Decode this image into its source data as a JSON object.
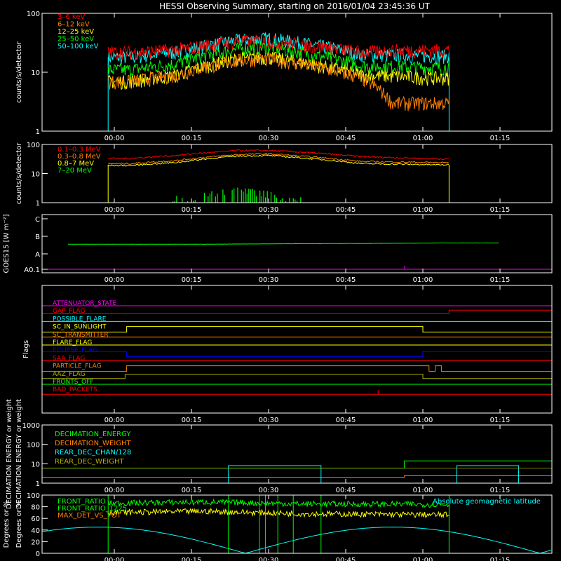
{
  "chart_data": {
    "type": "line",
    "title": "HESSI Observing Summary, starting on 2016/01/04 23:45:36 UT",
    "time_ticks": [
      "00:00",
      "00:15",
      "00:30",
      "00:45",
      "01:00",
      "01:15"
    ],
    "colors": {
      "background": "#000000",
      "axis": "#ffffff",
      "green": "#00ff00",
      "cyan": "#00ffff",
      "yellow": "#ffff00",
      "orange": "#ff8000",
      "red": "#ff0000",
      "magenta": "#ff00ff",
      "blue": "#0000ff",
      "olive": "#b0b000"
    },
    "panels": [
      {
        "id": "hxr",
        "ylabel": "counts/s/detector",
        "ylim": [
          1,
          100
        ],
        "log": true,
        "yticks": [
          "1",
          "10",
          "100"
        ],
        "legend": [
          {
            "label": "3–6 keV",
            "color": "#ff0000"
          },
          {
            "label": "6–12 keV",
            "color": "#ff8000"
          },
          {
            "label": "12–25 keV",
            "color": "#ffff00"
          },
          {
            "label": "25–50 keV",
            "color": "#00ff00"
          },
          {
            "label": "50–100 keV",
            "color": "#00ffff"
          }
        ],
        "series": [
          {
            "name": "3–6 keV",
            "color": "#ff0000",
            "x": [
              -0.02,
              0.05,
              0.2,
              0.4,
              0.5,
              0.6,
              0.8,
              0.95,
              1.05
            ],
            "y": [
              22,
              22,
              24,
              34,
              34,
              30,
              22,
              24,
              24
            ]
          },
          {
            "name": "6–12 keV",
            "color": "#ff8000",
            "x": [
              -0.02,
              0.05,
              0.2,
              0.4,
              0.5,
              0.6,
              0.8,
              0.9,
              1.05
            ],
            "y": [
              7,
              7,
              9,
              16,
              17,
              14,
              8,
              3,
              3
            ]
          },
          {
            "name": "12–25 keV",
            "color": "#ffff00",
            "x": [
              -0.02,
              0.05,
              0.2,
              0.4,
              0.5,
              0.6,
              0.8,
              1.05
            ],
            "y": [
              7,
              7,
              9,
              17,
              18,
              15,
              9,
              8
            ]
          },
          {
            "name": "25–50 keV",
            "color": "#00ff00",
            "x": [
              -0.02,
              0.05,
              0.2,
              0.4,
              0.5,
              0.6,
              0.8,
              1.05
            ],
            "y": [
              11,
              11,
              14,
              25,
              27,
              22,
              13,
              12
            ]
          },
          {
            "name": "50–100 keV",
            "color": "#00ffff",
            "x": [
              -0.02,
              0.05,
              0.2,
              0.4,
              0.5,
              0.6,
              0.8,
              1.05
            ],
            "y": [
              18,
              18,
              22,
              35,
              38,
              32,
              20,
              19
            ]
          }
        ]
      },
      {
        "id": "gamma",
        "ylabel": "counts/s/detector",
        "ylim": [
          1,
          100
        ],
        "log": true,
        "yticks": [
          "1",
          "10",
          "100"
        ],
        "legend": [
          {
            "label": "0.1–0.3 MeV",
            "color": "#ff0000"
          },
          {
            "label": "0.3–0.8 MeV",
            "color": "#ff8000"
          },
          {
            "label": "0.8–7 MeV",
            "color": "#ffff00"
          },
          {
            "label": "7–20 MeV",
            "color": "#00ff00"
          }
        ],
        "series": [
          {
            "name": "0.1–0.3 MeV",
            "color": "#ff0000",
            "x": [
              -0.02,
              0.05,
              0.2,
              0.4,
              0.5,
              0.6,
              0.8,
              1.05
            ],
            "y": [
              33,
              33,
              42,
              62,
              62,
              55,
              38,
              32
            ]
          },
          {
            "name": "0.3–0.8 MeV",
            "color": "#ff8000",
            "x": [
              -0.02,
              0.05,
              0.2,
              0.4,
              0.5,
              0.6,
              0.8,
              1.05
            ],
            "y": [
              22,
              22,
              28,
              45,
              48,
              40,
              26,
              24
            ]
          },
          {
            "name": "0.8–7 MeV",
            "color": "#ffff00",
            "x": [
              -0.02,
              0.05,
              0.2,
              0.4,
              0.5,
              0.6,
              0.8,
              1.05
            ],
            "y": [
              19,
              19,
              24,
              40,
              42,
              35,
              22,
              20
            ]
          },
          {
            "name": "7–20 MeV",
            "color": "#00ff00",
            "x": [
              0.2,
              0.25,
              0.3,
              0.35,
              0.4,
              0.45,
              0.5,
              0.55,
              0.6
            ],
            "y": [
              1.4,
              1.6,
              2.0,
              2.4,
              2.6,
              2.4,
              2.0,
              1.6,
              1.3
            ]
          }
        ]
      },
      {
        "id": "goes",
        "ylabel": "GOES15 [W m⁻²]",
        "yticks": [
          "A0.1",
          "A",
          "B",
          "C"
        ],
        "series": [
          {
            "name": "GOES15",
            "color": "#00ff00",
            "x": [
              -0.15,
              0.3,
              0.6,
              0.9,
              1.05,
              1.25
            ],
            "y": [
              1.55,
              1.55,
              1.58,
              1.6,
              1.62,
              1.62
            ]
          }
        ]
      },
      {
        "id": "flags",
        "ylabel": "Flags",
        "flags": [
          {
            "label": "ATTENUATOR_STATE",
            "color": "#ff00ff"
          },
          {
            "label": "GAP_FLAG",
            "color": "#ff0000"
          },
          {
            "label": "POSSIBLE_FLARE",
            "color": "#00ffff"
          },
          {
            "label": "SC_IN_SUNLIGHT",
            "color": "#ffff00"
          },
          {
            "label": "SC_TRANSMITTER",
            "color": "#ff8000"
          },
          {
            "label": "FLARE_FLAG",
            "color": "#ffff00"
          },
          {
            "label": "ECLIPSE_FLAG",
            "color": "#0000ff"
          },
          {
            "label": "SAA_FLAG",
            "color": "#ff0000"
          },
          {
            "label": "PARTICLE_FLAG",
            "color": "#ff8000"
          },
          {
            "label": "AAZ_FLAG",
            "color": "#b0b000"
          },
          {
            "label": "FRONTS_OFF",
            "color": "#00ff00"
          },
          {
            "label": "BAD_PACKETS",
            "color": "#ff0000"
          }
        ]
      },
      {
        "id": "decimation",
        "ylabel": "DECIMATION ENERGY or weight",
        "ylim": [
          1,
          1000
        ],
        "log": true,
        "yticks": [
          "1",
          "10",
          "100",
          "1000"
        ],
        "legend": [
          {
            "label": "DECIMATION_ENERGY",
            "color": "#00ff00"
          },
          {
            "label": "DECIMATION_WEIGHT",
            "color": "#ff8000"
          },
          {
            "label": "REAR_DEC_CHAN/128",
            "color": "#00ffff"
          },
          {
            "label": "REAR_DEC_WEIGHT",
            "color": "#b0b000"
          }
        ]
      },
      {
        "id": "ratios",
        "ylabel": "Degrees or %",
        "ylim": [
          0,
          100
        ],
        "yticks": [
          "0",
          "20",
          "40",
          "60",
          "80",
          "100"
        ],
        "legend": [
          {
            "label": "FRONT_RATIO",
            "color": "#00ff00"
          },
          {
            "label": "FRONT_RATIO_1225",
            "color": "#00ff00"
          },
          {
            "label": "MAX_DET_VS_TOT",
            "color": "#ff8000"
          }
        ],
        "right_label": "Absolute geomagnetic latitude",
        "series": [
          {
            "name": "FRONT_RATIO",
            "color": "#00ff00",
            "x": [
              -0.02,
              0.3,
              0.6,
              1.05
            ],
            "y": [
              86,
              88,
              85,
              84
            ]
          },
          {
            "name": "MAX_DET_VS_TOT",
            "color": "#ffff00",
            "x": [
              -0.02,
              0.3,
              0.6,
              1.05
            ],
            "y": [
              70,
              72,
              68,
              66
            ]
          }
        ]
      }
    ]
  }
}
